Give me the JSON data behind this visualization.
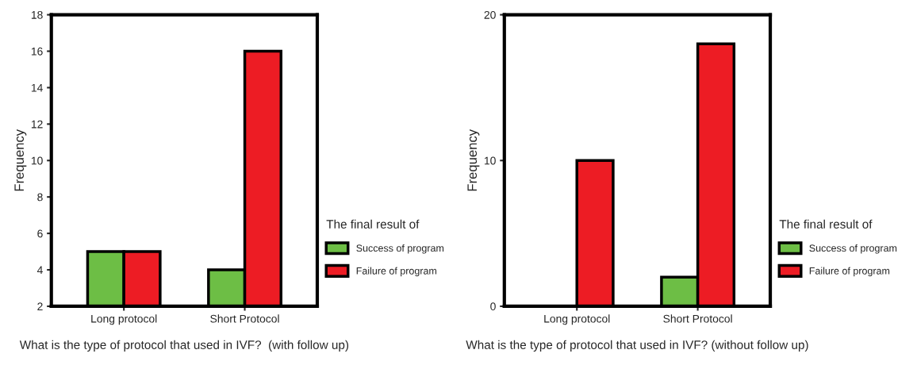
{
  "chart_data": [
    {
      "type": "bar",
      "xlabel": "What is the type of protocol that used in IVF?  (with follow up)",
      "ylabel": "Frequency",
      "legend_title": "The final result of",
      "categories": [
        "Long protocol",
        "Short Protocol"
      ],
      "series": [
        {
          "name": "Success of program",
          "color": "#6dbe45",
          "values": [
            5,
            4
          ]
        },
        {
          "name": "Failure of program",
          "color": "#ed1c24",
          "values": [
            5,
            16
          ]
        }
      ],
      "ylim": [
        2,
        18
      ],
      "yticks": [
        2,
        4,
        6,
        8,
        10,
        12,
        14,
        16,
        18
      ],
      "grid": false,
      "legend": "right"
    },
    {
      "type": "bar",
      "xlabel": "What is the type of protocol that used in IVF? (without follow up)",
      "ylabel": "Frequency",
      "legend_title": "The final result of",
      "categories": [
        "Long protocol",
        "Short Protocol"
      ],
      "series": [
        {
          "name": "Success of program",
          "color": "#6dbe45",
          "values": [
            0,
            2
          ]
        },
        {
          "name": "Failure of program",
          "color": "#ed1c24",
          "values": [
            10,
            18
          ]
        }
      ],
      "ylim": [
        0,
        20
      ],
      "yticks": [
        0,
        10,
        20
      ],
      "grid": false,
      "legend": "right"
    }
  ]
}
